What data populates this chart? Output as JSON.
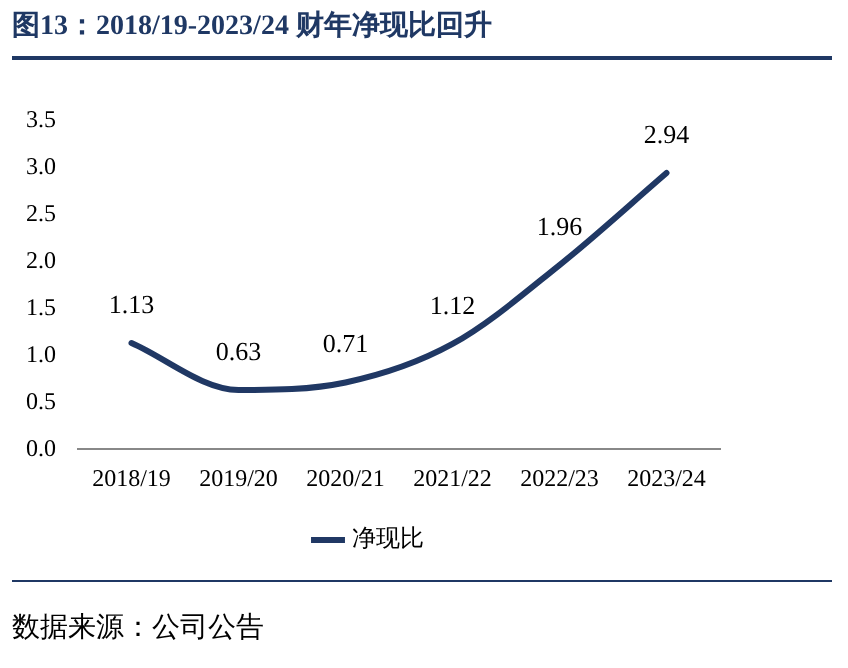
{
  "chart_data": {
    "type": "line",
    "title": "图13：2018/19-2023/24 财年净现比回升",
    "categories": [
      "2018/19",
      "2019/20",
      "2020/21",
      "2021/22",
      "2022/23",
      "2023/24"
    ],
    "series": [
      {
        "name": "净现比",
        "color": "#203864",
        "values": [
          1.13,
          0.63,
          0.71,
          1.12,
          1.96,
          2.94
        ]
      }
    ],
    "ylim": [
      0,
      3.5
    ],
    "yticks": [
      {
        "value": 0,
        "label": "0.0"
      },
      {
        "value": 0.5,
        "label": "0.5"
      },
      {
        "value": 1,
        "label": "1.0"
      },
      {
        "value": 1.5,
        "label": "1.5"
      },
      {
        "value": 2,
        "label": "2.0"
      },
      {
        "value": 2.5,
        "label": "2.5"
      },
      {
        "value": 3,
        "label": "3.0"
      },
      {
        "value": 3.5,
        "label": "3.5"
      }
    ],
    "grid": false,
    "legend": "bottom",
    "marker": "none",
    "line_style": "solid",
    "data_labels": true,
    "annotations": [
      "数据来源：公司公告"
    ]
  }
}
